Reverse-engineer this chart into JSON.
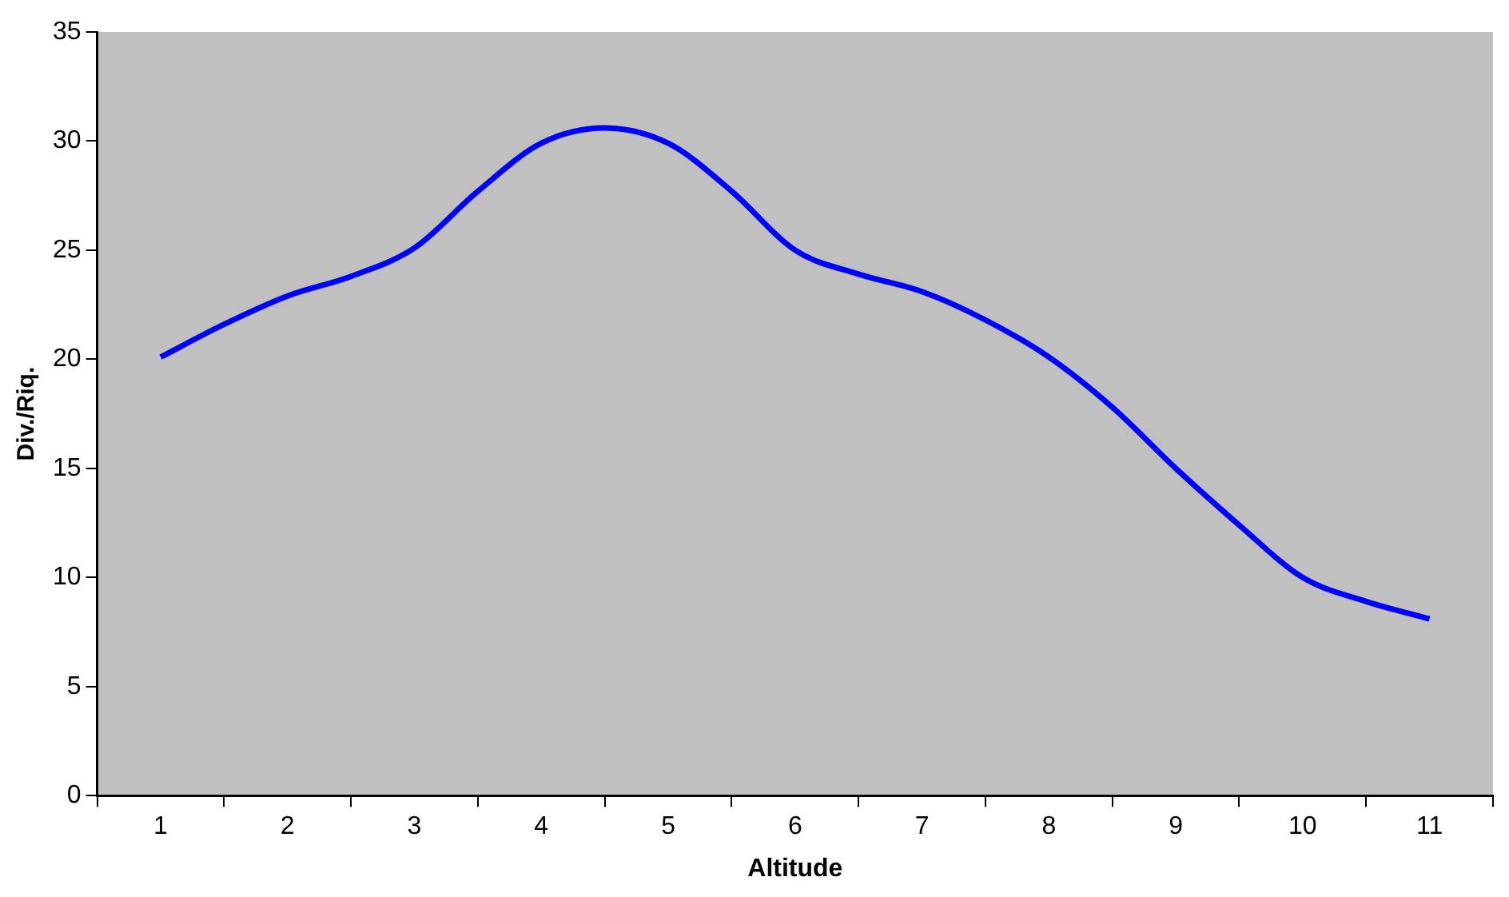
{
  "chart_data": {
    "type": "line",
    "xlabel": "Altitude",
    "ylabel": "Div./Riq.",
    "x": [
      1,
      1.5,
      2,
      2.5,
      3,
      3.5,
      4,
      4.5,
      5,
      5.5,
      6,
      6.5,
      7,
      7.5,
      8,
      8.5,
      9,
      9.5,
      10,
      10.5,
      11
    ],
    "series": [
      {
        "color": "#0000ff",
        "values": [
          20.1,
          21.6,
          22.9,
          23.8,
          25.1,
          27.7,
          29.9,
          30.6,
          29.9,
          27.7,
          25.0,
          23.9,
          23.1,
          21.8,
          20.1,
          17.8,
          15.0,
          12.4,
          10.0,
          8.9,
          8.1
        ]
      }
    ],
    "xlim": [
      0.5,
      11.5
    ],
    "xticks": [
      {
        "value": 0.5,
        "label": null
      },
      1,
      {
        "value": 1.5,
        "label": null
      },
      2,
      {
        "value": 2.5,
        "label": null
      },
      3,
      {
        "value": 3.5,
        "label": null
      },
      4,
      {
        "value": 4.5,
        "label": null
      },
      5,
      {
        "value": 5.5,
        "label": null
      },
      6,
      {
        "value": 6.5,
        "label": null
      },
      7,
      {
        "value": 7.5,
        "label": null
      },
      8,
      {
        "value": 8.5,
        "label": null
      },
      9,
      {
        "value": 9.5,
        "label": null
      },
      10,
      {
        "value": 10.5,
        "label": null
      },
      11,
      {
        "value": 11.5,
        "label": null
      }
    ],
    "ylim": [
      0,
      35
    ],
    "yticks": [
      0,
      5,
      10,
      15,
      20,
      25,
      30,
      35
    ],
    "grid": false,
    "legend": false,
    "marker": "none",
    "line_style": "solid"
  }
}
